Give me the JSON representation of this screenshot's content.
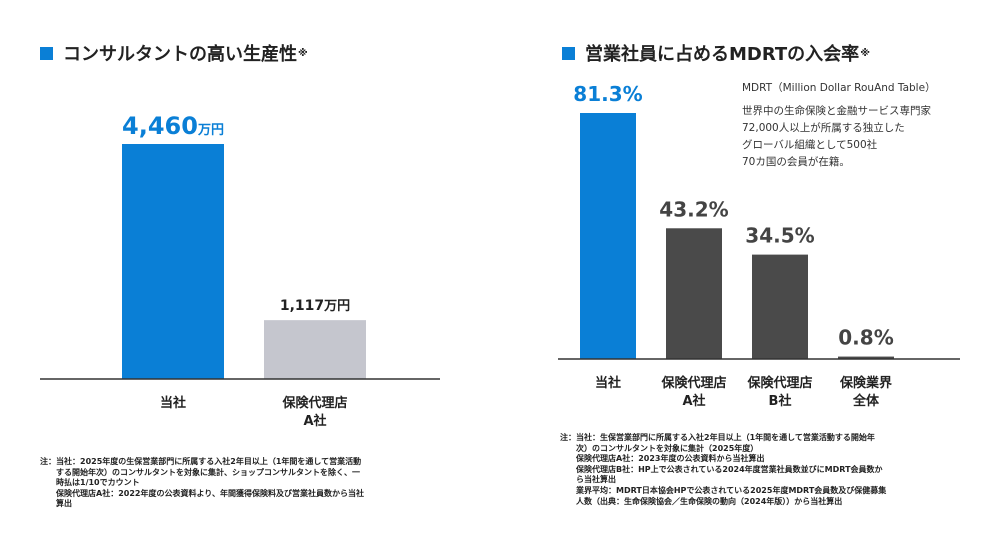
{
  "left": {
    "title": "コンサルタントの高い生産性",
    "title_mark": "※",
    "note": [
      "注：当社：2025年度の生保営業部門に所属する入社2年目以上（1年間を通して営業活動",
      "　　する開始年次）のコンサルタントを対象に集計、ショップコンサルタントを除く、一",
      "　　時払は1/10でカウント",
      "　　保険代理店A社：2022年度の公表資料より、年間獲得保険料及び営業社員数から当社",
      "　　算出"
    ]
  },
  "right": {
    "title": "営業社員に占めるMDRTの入会率",
    "title_mark": "※",
    "mdrt": {
      "heading": "MDRT（Million Dollar RouAnd Table）",
      "lines": [
        "世界中の生命保険と金融サービス専門家",
        "72,000人以上が所属する独立した",
        "グローバル組織として500社",
        "70カ国の会員が在籍。"
      ]
    },
    "note": [
      "注：当社：生保営業部門に所属する入社2年目以上（1年間を通して営業活動する開始年",
      "　　次）のコンサルタントを対象に集計（2025年度）",
      "　　保険代理店A社：2023年度の公表資料から当社算出",
      "　　保険代理店B社：HP上で公表されている2024年度営業社員数並びにMDRT会員数か",
      "　　ら当社算出",
      "　　業界平均：MDRT日本協会HPで公表されている2025年度MDRT会員数及び保健募集",
      "　　人数（出典：生命保険協会／生命保険の動向（2024年版））から当社算出"
    ]
  },
  "colors": {
    "accent": "#0a7fd6",
    "grey_bar": "#c5c6ce",
    "dark_bar": "#4a4a4a",
    "axis": "#333333"
  },
  "chart_data": [
    {
      "type": "bar",
      "title": "コンサルタントの高い生産性※",
      "categories": [
        [
          "当社"
        ],
        [
          "保険代理店",
          "A社"
        ]
      ],
      "values": [
        4460,
        1117
      ],
      "value_labels": [
        {
          "number": "4,460",
          "unit": "万円"
        },
        {
          "number": "1,117",
          "unit": "万円"
        }
      ],
      "ylim": [
        0,
        5000
      ],
      "bar_colors": [
        "#0a7fd6",
        "#c5c6ce"
      ],
      "label_colors": [
        "#0a7fd6",
        "#222222"
      ],
      "grid": false
    },
    {
      "type": "bar",
      "title": "営業社員に占めるMDRTの入会率※",
      "categories": [
        [
          "当社"
        ],
        [
          "保険代理店",
          "A社"
        ],
        [
          "保険代理店",
          "B社"
        ],
        [
          "保険業界",
          "全体"
        ]
      ],
      "values": [
        81.3,
        43.2,
        34.5,
        0.8
      ],
      "value_labels": [
        {
          "number": "81.3%",
          "unit": ""
        },
        {
          "number": "43.2%",
          "unit": ""
        },
        {
          "number": "34.5%",
          "unit": ""
        },
        {
          "number": "0.8%",
          "unit": ""
        }
      ],
      "ylim": [
        0,
        100
      ],
      "bar_colors": [
        "#0a7fd6",
        "#4a4a4a",
        "#4a4a4a",
        "#4a4a4a"
      ],
      "label_colors": [
        "#0a7fd6",
        "#444444",
        "#444444",
        "#444444"
      ],
      "grid": false
    }
  ]
}
